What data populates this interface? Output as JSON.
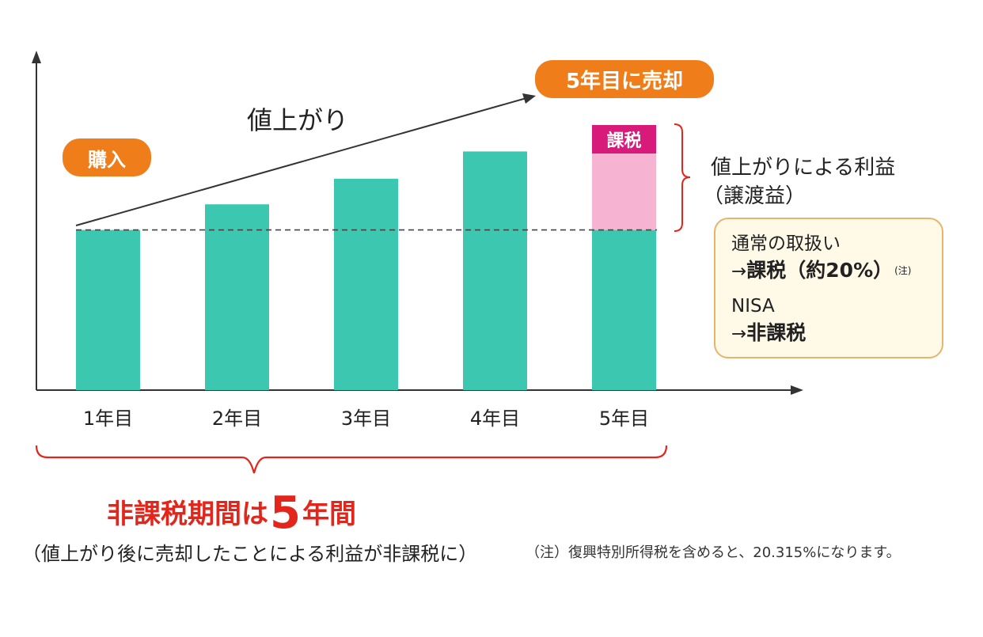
{
  "chart_data": {
    "type": "bar",
    "categories": [
      "1年目",
      "2年目",
      "3年目",
      "4年目",
      "5年目"
    ],
    "values": [
      100,
      116,
      132,
      149,
      149
    ],
    "baseline_value": 100,
    "ylim": [
      0,
      208
    ],
    "grid": false,
    "series_color": "#3cc8b0",
    "gain_color": "#f7b3d2",
    "tax_color": "#d81b7a",
    "trend_label": "値上がり",
    "tax_label": "課税"
  },
  "labels": {
    "purchase": "購入",
    "sell": "5年目に売却",
    "gain_title": "値上がりによる利益",
    "gain_sub": "（譲渡益）"
  },
  "note_box": {
    "line1": "通常の取扱い",
    "line2_prefix": "→",
    "line2_bold": "課税（約20%）",
    "line2_sup": "(注)",
    "line3": "NISA",
    "line4_prefix": "→",
    "line4_bold": "非課税"
  },
  "period": {
    "prefix": "非課税期間は",
    "number": "5",
    "suffix": "年間",
    "caption": "（値上がり後に売却したことによる利益が非課税に）"
  },
  "footnote": "（注）復興特別所得税を含めると、20.315%になります。",
  "colors": {
    "orange": "#ef7d1a",
    "red": "#e3261c",
    "teal": "#3cc8b0",
    "pink": "#f7b3d2",
    "magenta": "#d81b7a"
  }
}
